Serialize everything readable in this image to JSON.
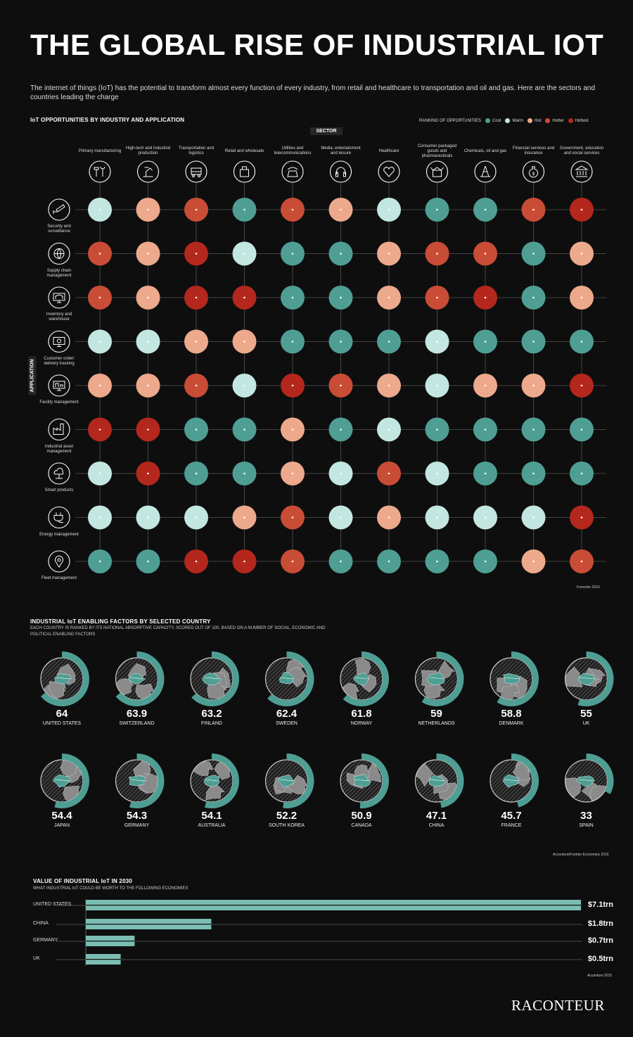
{
  "title": "THE GLOBAL RISE OF INDUSTRIAL IOT",
  "intro": "The internet of things (IoT) has the potential to transform almost every function of every industry, from retail and healthcare to transportation and oil and gas. Here are the sectors and countries leading the charge",
  "section1": {
    "heading": "IoT OPPORTUNITIES BY INDUSTRY AND APPLICATION",
    "sector_label": "SECTOR",
    "application_label": "APPLICATION",
    "legend_title": "RANKING OF OPPORTUNITIES",
    "legend": [
      {
        "label": "Cool",
        "color": "#4f9e94"
      },
      {
        "label": "Warm",
        "color": "#c3e6e0"
      },
      {
        "label": "Hot",
        "color": "#eda98c"
      },
      {
        "label": "Hotter",
        "color": "#c94c36"
      },
      {
        "label": "Hottest",
        "color": "#b3271d"
      }
    ],
    "source": "Forrester 2016"
  },
  "chart_data": [
    {
      "type": "heatmap",
      "title": "IoT OPPORTUNITIES BY INDUSTRY AND APPLICATION",
      "xlabel": "SECTOR",
      "ylabel": "APPLICATION",
      "scale": [
        "Cool",
        "Warm",
        "Hot",
        "Hotter",
        "Hottest"
      ],
      "sectors": [
        {
          "label": "Primary manufacturing",
          "icon": "tools-icon"
        },
        {
          "label": "High-tech and industrial production",
          "icon": "robot-arm-icon"
        },
        {
          "label": "Transportation and logistics",
          "icon": "truck-icon"
        },
        {
          "label": "Retail and wholesale",
          "icon": "shopping-bag-icon"
        },
        {
          "label": "Utilities and telecommunications",
          "icon": "telephone-icon"
        },
        {
          "label": "Media, entertainment and leisure",
          "icon": "headphones-icon"
        },
        {
          "label": "Healthcare",
          "icon": "heart-icon"
        },
        {
          "label": "Consumer packaged goods and pharmaceuticals",
          "icon": "box-icon"
        },
        {
          "label": "Chemicals, oil and gas",
          "icon": "oil-rig-icon"
        },
        {
          "label": "Financial services and insurance",
          "icon": "money-bag-icon"
        },
        {
          "label": "Government, education and social services",
          "icon": "government-building-icon"
        }
      ],
      "applications": [
        {
          "label": "Security and surveillance",
          "icon": "cctv-camera-icon"
        },
        {
          "label": "Supply chain management",
          "icon": "globe-icon"
        },
        {
          "label": "Inventory and warehouse",
          "icon": "warehouse-monitor-icon"
        },
        {
          "label": "Customer order/ delivery tracking",
          "icon": "tracking-screen-icon"
        },
        {
          "label": "Facility management",
          "icon": "facility-screen-icon"
        },
        {
          "label": "Industrial asset management",
          "icon": "factory-icon"
        },
        {
          "label": "Smart products",
          "icon": "cloud-network-icon"
        },
        {
          "label": "Energy management",
          "icon": "plug-icon"
        },
        {
          "label": "Fleet management",
          "icon": "location-pin-icon"
        }
      ],
      "values": [
        [
          "Warm",
          "Hot",
          "Hotter",
          "Cool",
          "Hotter",
          "Hot",
          "Warm",
          "Cool",
          "Cool",
          "Hotter",
          "Hottest"
        ],
        [
          "Hotter",
          "Hot",
          "Hottest",
          "Warm",
          "Cool",
          "Cool",
          "Hot",
          "Hotter",
          "Hotter",
          "Cool",
          "Hot"
        ],
        [
          "Hotter",
          "Hot",
          "Hottest",
          "Hottest",
          "Cool",
          "Cool",
          "Hot",
          "Hotter",
          "Hottest",
          "Cool",
          "Hot"
        ],
        [
          "Warm",
          "Warm",
          "Hot",
          "Hot",
          "Cool",
          "Cool",
          "Cool",
          "Warm",
          "Cool",
          "Cool",
          "Cool"
        ],
        [
          "Hot",
          "Hot",
          "Hotter",
          "Warm",
          "Hottest",
          "Hotter",
          "Hot",
          "Warm",
          "Hot",
          "Hot",
          "Hottest"
        ],
        [
          "Hottest",
          "Hottest",
          "Cool",
          "Cool",
          "Hot",
          "Cool",
          "Warm",
          "Cool",
          "Cool",
          "Cool",
          "Cool"
        ],
        [
          "Warm",
          "Hottest",
          "Cool",
          "Cool",
          "Hot",
          "Warm",
          "Hotter",
          "Warm",
          "Cool",
          "Cool",
          "Cool"
        ],
        [
          "Warm",
          "Warm",
          "Warm",
          "Hot",
          "Hotter",
          "Warm",
          "Hot",
          "Warm",
          "Warm",
          "Warm",
          "Hottest"
        ],
        [
          "Cool",
          "Cool",
          "Hottest",
          "Hottest",
          "Hotter",
          "Cool",
          "Cool",
          "Cool",
          "Cool",
          "Hot",
          "Hotter"
        ]
      ]
    },
    {
      "type": "radial-bar",
      "title": "INDUSTRIAL IoT ENABLING FACTORS BY SELECTED COUNTRY",
      "subtitle": "EACH COUNTRY IS RANKED BY ITS NATIONAL ABSORPTIVE CAPACITY, SCORED OUT OF 100, BASED ON A NUMBER OF SOCIAL, ECONOMIC AND POLITICAL ENABLING FACTORS",
      "max": 100,
      "categories": [
        "UNITED STATES",
        "SWITZERLAND",
        "FINLAND",
        "SWEDEN",
        "NORWAY",
        "NETHERLANDS",
        "DENMARK",
        "UK",
        "JAPAN",
        "GERMANY",
        "AUSTRALIA",
        "SOUTH KOREA",
        "CANADA",
        "CHINA",
        "FRANCE",
        "SPAIN"
      ],
      "values": [
        64,
        63.9,
        63.2,
        62.4,
        61.8,
        59,
        58.8,
        55,
        54.4,
        54.3,
        54.1,
        52.2,
        50.9,
        47.1,
        45.7,
        33
      ],
      "source": "Accenture/Frontier Economics 2015"
    },
    {
      "type": "bar",
      "title": "VALUE OF INDUSTRIAL IoT IN 2030",
      "subtitle": "WHAT INDUSTRIAL IoT COULD BE WORTH TO THE FOLLOWING ECONOMIES",
      "categories": [
        "UNITED STATES",
        "CHINA",
        "GERMANY",
        "UK"
      ],
      "values": [
        7.1,
        1.8,
        0.7,
        0.5
      ],
      "value_labels": [
        "$7.1trn",
        "$1.8trn",
        "$0.7trn",
        "$0.5trn"
      ],
      "unit": "trn",
      "orientation": "horizontal",
      "source": "Accenture 2015"
    }
  ],
  "section2": {
    "heading": "INDUSTRIAL IoT ENABLING FACTORS BY SELECTED COUNTRY",
    "subtitle": "EACH COUNTRY IS RANKED BY ITS NATIONAL ABSORPTIVE CAPACITY, SCORED OUT OF 100, BASED ON A NUMBER OF SOCIAL, ECONOMIC AND POLITICAL ENABLING FACTORS",
    "source": "Accenture/Frontier Economics 2015"
  },
  "section3": {
    "heading": "VALUE OF INDUSTRIAL IoT IN 2030",
    "subtitle": "WHAT INDUSTRIAL IoT COULD BE WORTH TO THE FOLLOWING ECONOMIES",
    "source": "Accenture 2015"
  },
  "logo": "RACONTEUR",
  "colors": {
    "background": "#0e0e0e",
    "teal": "#4f9e94",
    "map_gray": "#8a8a8a"
  }
}
